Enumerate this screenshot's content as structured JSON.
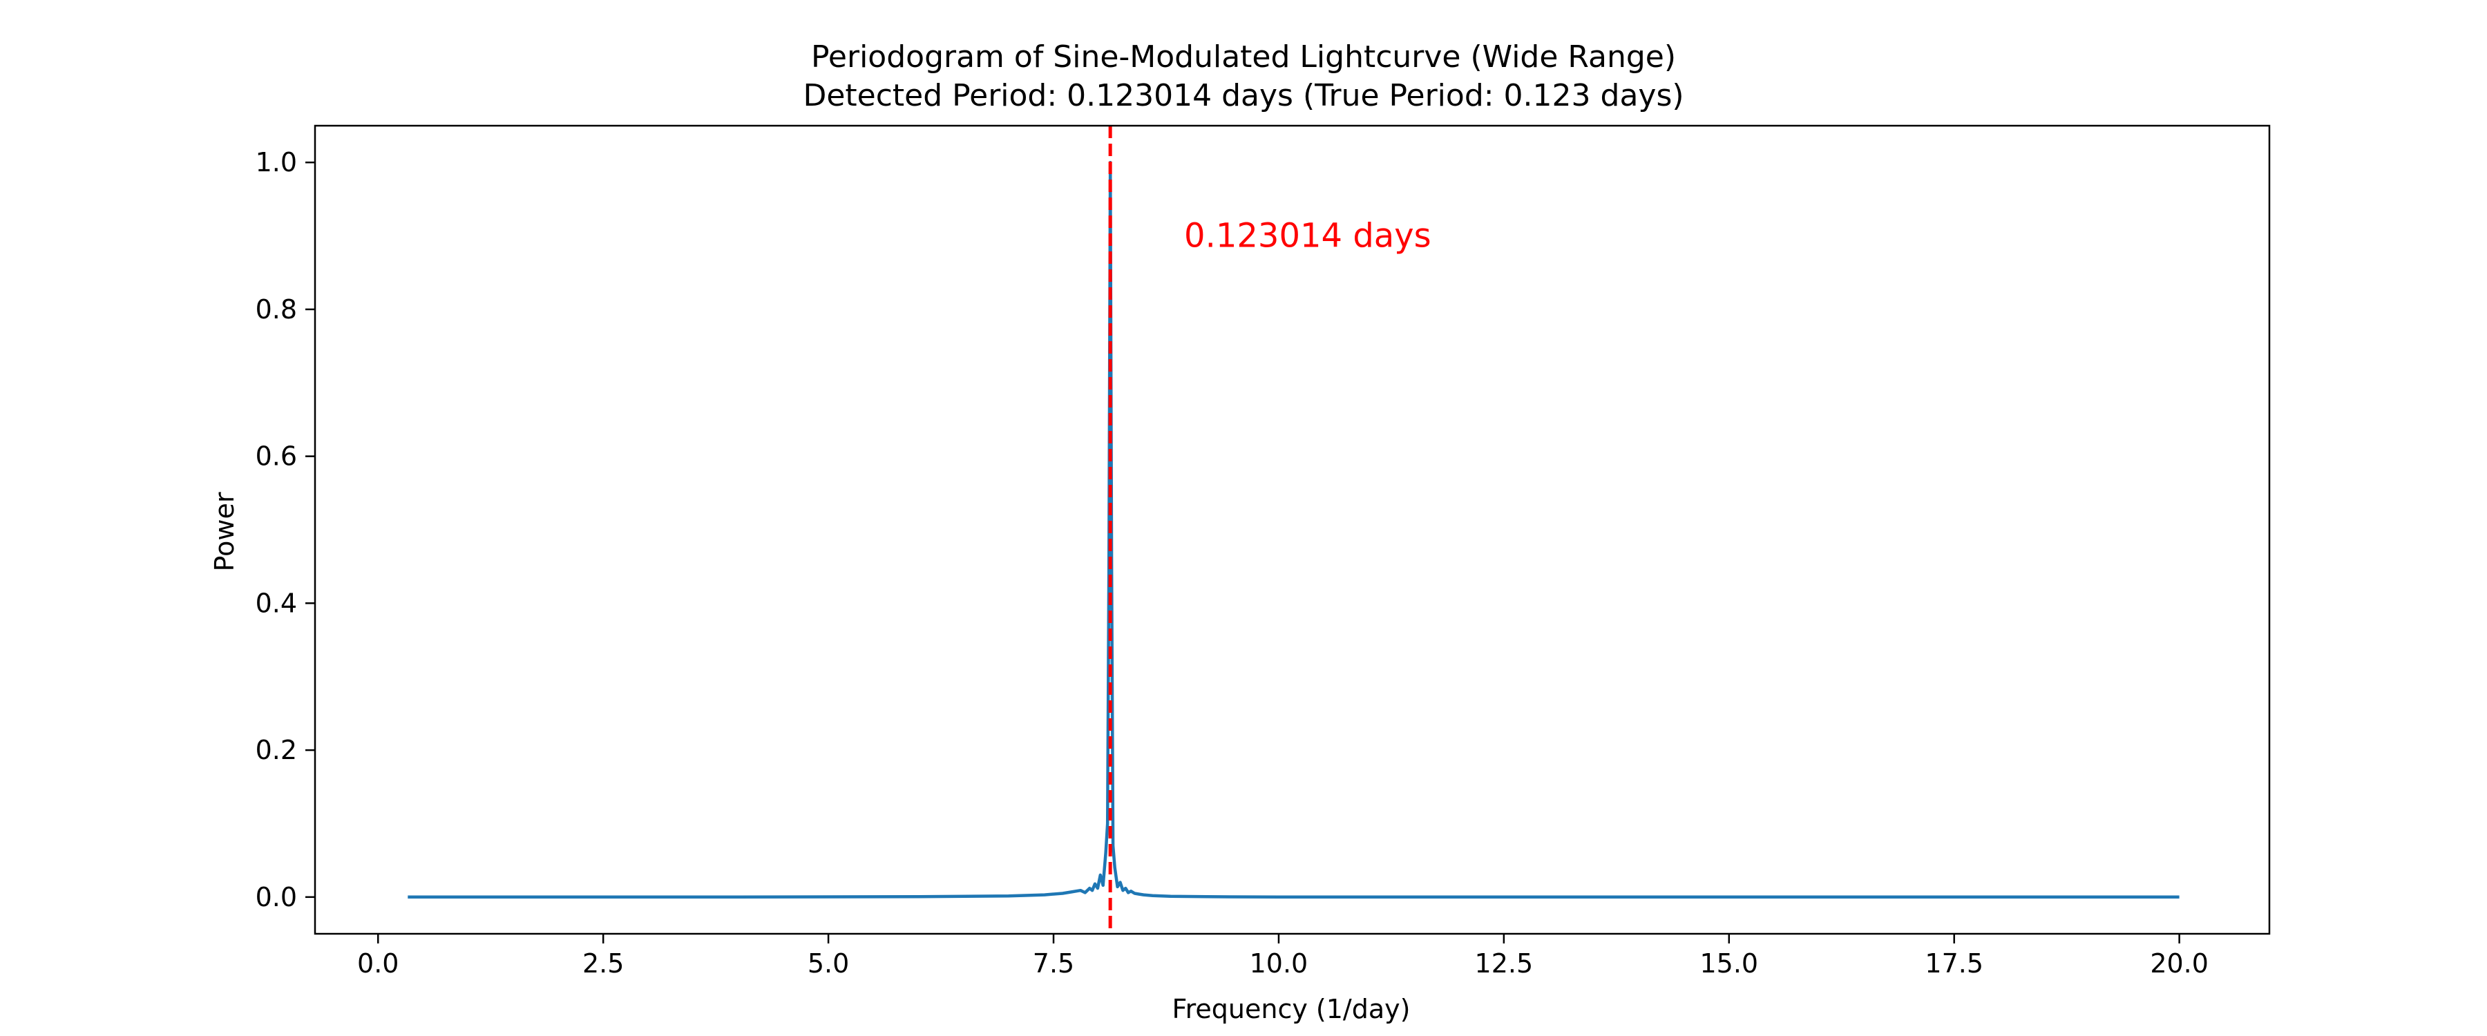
{
  "chart_data": {
    "type": "line",
    "title": "Periodogram of Sine-Modulated Lightcurve (Wide Range)",
    "subtitle": "Detected Period: 0.123014 days (True Period: 0.123 days)",
    "xlabel": "Frequency (1/day)",
    "ylabel": "Power",
    "xlim": [
      -0.7,
      21.0
    ],
    "ylim": [
      -0.05,
      1.05
    ],
    "xticks": [
      0.0,
      2.5,
      5.0,
      7.5,
      10.0,
      12.5,
      15.0,
      17.5,
      20.0
    ],
    "xtick_labels": [
      "0.0",
      "2.5",
      "5.0",
      "7.5",
      "10.0",
      "12.5",
      "15.0",
      "17.5",
      "20.0"
    ],
    "yticks": [
      0.0,
      0.2,
      0.4,
      0.6,
      0.8,
      1.0
    ],
    "ytick_labels": [
      "0.0",
      "0.2",
      "0.4",
      "0.6",
      "0.8",
      "1.0"
    ],
    "grid": false,
    "series": [
      {
        "color": "#1f77b4",
        "x": [
          0.33,
          2.0,
          4.0,
          6.0,
          7.0,
          7.4,
          7.6,
          7.7,
          7.8,
          7.85,
          7.9,
          7.93,
          7.96,
          7.99,
          8.02,
          8.05,
          8.08,
          8.1,
          8.115,
          8.13,
          8.145,
          8.16,
          8.18,
          8.21,
          8.24,
          8.27,
          8.3,
          8.33,
          8.36,
          8.4,
          8.45,
          8.5,
          8.6,
          8.8,
          9.2,
          10.0,
          12.0,
          15.0,
          18.0,
          20.0
        ],
        "y": [
          0.0,
          0.0,
          0.0,
          0.0005,
          0.0015,
          0.003,
          0.005,
          0.007,
          0.009,
          0.006,
          0.012,
          0.009,
          0.018,
          0.012,
          0.03,
          0.016,
          0.06,
          0.1,
          0.45,
          1.0,
          0.45,
          0.07,
          0.04,
          0.014,
          0.02,
          0.009,
          0.012,
          0.006,
          0.008,
          0.005,
          0.004,
          0.003,
          0.002,
          0.001,
          0.0005,
          0.0,
          0.0,
          0.0,
          0.0,
          0.0
        ]
      }
    ],
    "vline": {
      "x": 8.13,
      "color": "#ff0000",
      "style": "dashed"
    },
    "annotation": {
      "text": "0.123014 days",
      "x": 8.95,
      "y": 0.9,
      "color": "#ff0000"
    }
  }
}
